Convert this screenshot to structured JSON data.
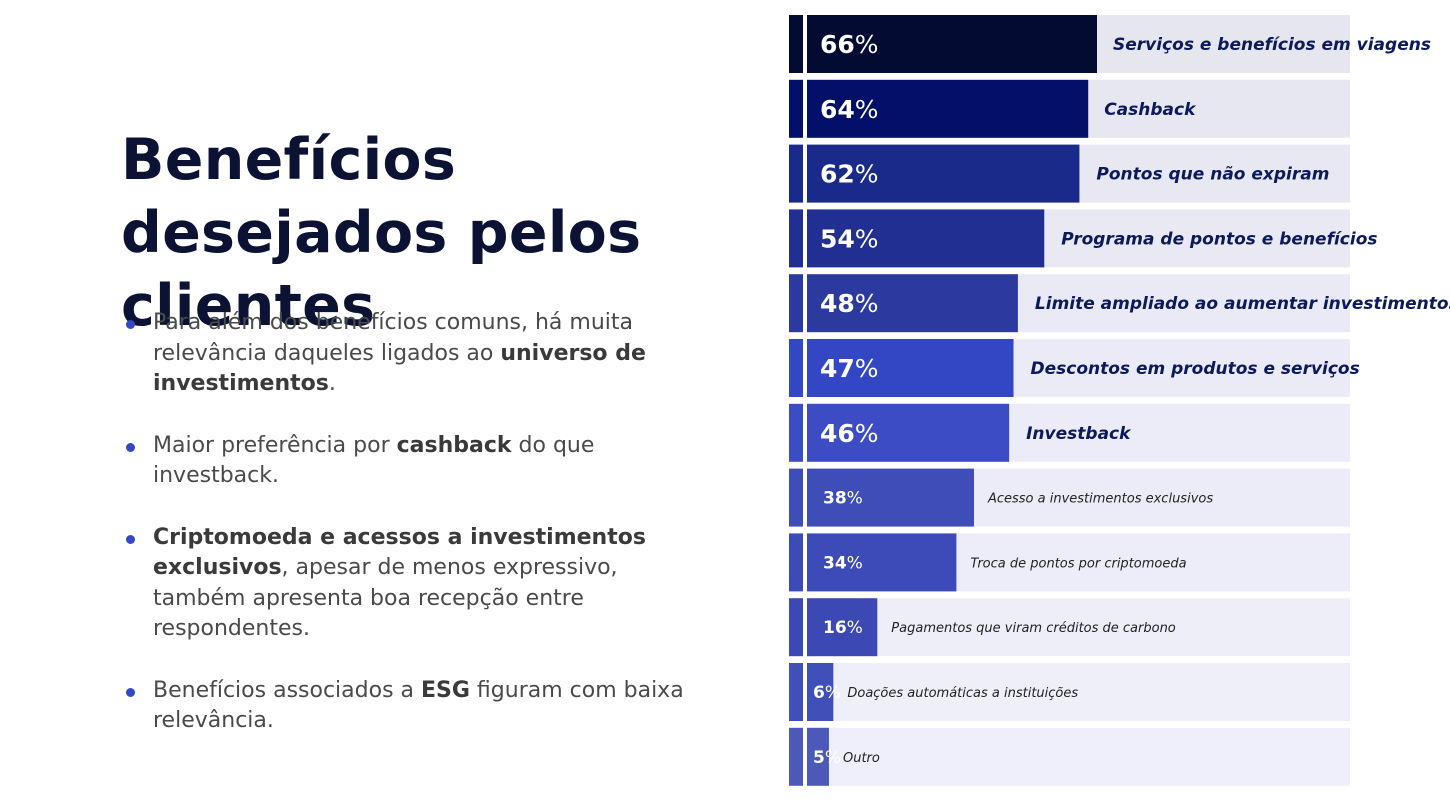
{
  "heading": {
    "title": "Benefícios desejados pelos clientes"
  },
  "bullets": [
    {
      "segments": [
        {
          "text": "Para além dos benefícios comuns, há muita relevância daqueles ligados ao ",
          "bold": false
        },
        {
          "text": "universo de investimentos",
          "bold": true
        },
        {
          "text": ".",
          "bold": false
        }
      ]
    },
    {
      "segments": [
        {
          "text": "Maior preferência por ",
          "bold": false
        },
        {
          "text": "cashback",
          "bold": true
        },
        {
          "text": " do que investback.",
          "bold": false
        }
      ]
    },
    {
      "segments": [
        {
          "text": "Criptomoeda e acessos a investimentos exclusivos",
          "bold": true
        },
        {
          "text": ", apesar de menos expressivo, também apresenta boa recepção entre respondentes.",
          "bold": false
        }
      ]
    },
    {
      "segments": [
        {
          "text": "Benefícios associados a ",
          "bold": false
        },
        {
          "text": "ESG",
          "bold": true
        },
        {
          "text": " figuram com baixa relevância.",
          "bold": false
        }
      ]
    }
  ],
  "chart_data": {
    "type": "bar",
    "orientation": "horizontal",
    "title": "",
    "xlabel": "",
    "ylabel": "",
    "xlim": [
      0,
      100
    ],
    "unit": "%",
    "categories": [
      "Serviços e benefícios em viagens",
      "Cashback",
      "Pontos que não expiram",
      "Programa de pontos e benefícios",
      "Limite ampliado ao aumentar investimentos",
      "Descontos em produtos e serviços",
      "Investback",
      "Acesso a investimentos exclusivos",
      "Troca de pontos por criptomoeda",
      "Pagamentos que viram créditos de carbono",
      "Doações automáticas a instituições",
      "Outro"
    ],
    "values": [
      66,
      64,
      62,
      54,
      48,
      47,
      46,
      38,
      34,
      16,
      6,
      5
    ],
    "colors": [
      "#040b33",
      "#03106a",
      "#1a2a8a",
      "#222f92",
      "#2c3aa0",
      "#3347c4",
      "#3c4cc4",
      "#3e4db8",
      "#3c4bb8",
      "#3c49b4",
      "#4150b8",
      "#4d59b8"
    ],
    "track_colors": [
      "#e6e6ee",
      "#e6e7f0",
      "#e7e8f2",
      "#e8e9f3",
      "#e9eaf5",
      "#eaebf6",
      "#ebecf7",
      "#ececf8",
      "#ededf9",
      "#eeeef9",
      "#efeffa",
      "#efeffb"
    ],
    "emphasized_count": 7
  }
}
